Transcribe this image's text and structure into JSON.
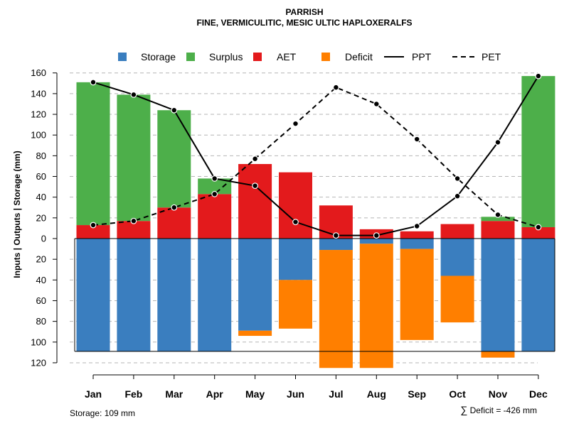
{
  "chart_data": {
    "type": "bar",
    "title": "PARRISH",
    "subtitle": "FINE, VERMICULITIC, MESIC ULTIC HAPLOXERALFS",
    "ylabel": "Inputs | Outputs | Storage    (mm)",
    "ylim": [
      -130,
      165
    ],
    "yticks": [
      160,
      140,
      120,
      100,
      80,
      60,
      40,
      20,
      0,
      -20,
      -40,
      -60,
      -80,
      -100,
      -120
    ],
    "ytick_labels": [
      "160",
      "140",
      "120",
      "100",
      "80",
      "60",
      "40",
      "20",
      "0",
      "20",
      "40",
      "60",
      "80",
      "100",
      "120"
    ],
    "categories": [
      "Jan",
      "Feb",
      "Mar",
      "Apr",
      "May",
      "Jun",
      "Jul",
      "Aug",
      "Sep",
      "Oct",
      "Nov",
      "Dec"
    ],
    "storage_capacity": 109,
    "legend": {
      "placement": "top",
      "entries": [
        {
          "label": "Storage",
          "kind": "square",
          "color": "#3a7ebf"
        },
        {
          "label": "Surplus",
          "kind": "square",
          "color": "#4daf4a"
        },
        {
          "label": "AET",
          "kind": "square",
          "color": "#e31a1c"
        },
        {
          "label": "Deficit",
          "kind": "square",
          "color": "#ff7f00"
        },
        {
          "label": "PPT",
          "kind": "solid-line",
          "color": "#000000"
        },
        {
          "label": "PET",
          "kind": "dashed-line",
          "color": "#000000"
        }
      ]
    },
    "colors": {
      "storage": "#3a7ebf",
      "surplus": "#4daf4a",
      "aet": "#e31a1c",
      "deficit": "#ff7f00"
    },
    "series": [
      {
        "name": "AET",
        "values": [
          13,
          17,
          30,
          43,
          72,
          64,
          32,
          9,
          7,
          14,
          17,
          11
        ]
      },
      {
        "name": "Surplus",
        "values": [
          138,
          122,
          94,
          15,
          0,
          0,
          0,
          0,
          0,
          0,
          4,
          146
        ]
      },
      {
        "name": "Storage",
        "values": [
          109,
          109,
          109,
          109,
          89,
          40,
          11,
          5,
          10,
          36,
          109,
          109
        ]
      },
      {
        "name": "Deficit",
        "values": [
          0,
          0,
          0,
          0,
          5,
          47,
          114,
          120,
          88,
          45,
          6,
          0
        ]
      },
      {
        "name": "PPT",
        "values": [
          151,
          139,
          124,
          58,
          51,
          16,
          3,
          3,
          12,
          41,
          93,
          157
        ]
      },
      {
        "name": "PET",
        "values": [
          13,
          17,
          30,
          43,
          77,
          111,
          146,
          130,
          96,
          58,
          23,
          11
        ]
      }
    ],
    "grid": true
  },
  "footer": {
    "storage_text": "Storage: 109 mm",
    "deficit_symbol": "∑",
    "deficit_text": "Deficit = -426 mm"
  }
}
